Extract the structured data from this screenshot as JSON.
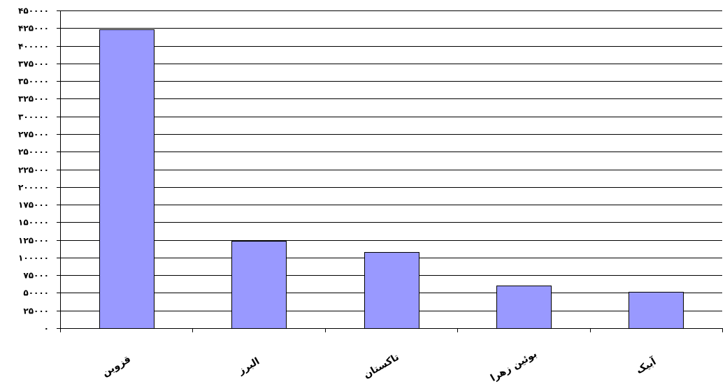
{
  "chart_data": {
    "type": "bar",
    "title": "",
    "xlabel": "",
    "ylabel": "",
    "categories": [
      "قزوین",
      "البرز",
      "تاکستان",
      "بوئین زهرا",
      "آبیک"
    ],
    "values": [
      423000,
      124000,
      108000,
      60000,
      51000
    ],
    "ylim": [
      0,
      450000
    ],
    "ytick_values": [
      0,
      25000,
      50000,
      75000,
      100000,
      125000,
      150000,
      175000,
      200000,
      225000,
      250000,
      275000,
      300000,
      325000,
      350000,
      375000,
      400000,
      425000,
      450000
    ],
    "ytick_labels": [
      "۰",
      "۲۵۰۰۰",
      "۵۰۰۰۰",
      "۷۵۰۰۰",
      "۱۰۰۰۰۰",
      "۱۲۵۰۰۰",
      "۱۵۰۰۰۰",
      "۱۷۵۰۰۰",
      "۲۰۰۰۰۰",
      "۲۲۵۰۰۰",
      "۲۵۰۰۰۰",
      "۲۷۵۰۰۰",
      "۳۰۰۰۰۰",
      "۳۲۵۰۰۰",
      "۳۵۰۰۰۰",
      "۳۷۵۰۰۰",
      "۴۰۰۰۰۰",
      "۴۲۵۰۰۰",
      "۴۵۰۰۰۰"
    ],
    "grid": true,
    "bar_color": "#9999ff"
  }
}
